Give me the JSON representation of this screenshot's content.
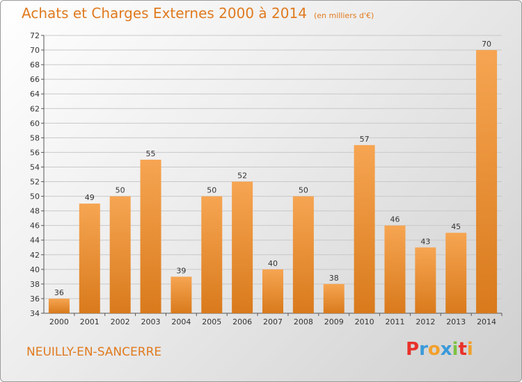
{
  "header": {
    "title": "Achats et Charges Externes 2000 à 2014",
    "unit": "(en milliers d'€)"
  },
  "footer": {
    "commune": "NEUILLY-EN-SANCERRE",
    "logo_letters": [
      "P",
      "r",
      "o",
      "x",
      "i",
      "t",
      "i"
    ],
    "logo_colors": [
      "#e8312a",
      "#3a9ad9",
      "#f2a02b",
      "#3a9ad9",
      "#7cc242",
      "#e8312a",
      "#f2a02b"
    ]
  },
  "colors": {
    "accent": "#e07a1f",
    "bar_top": "#f6a552",
    "bar_bottom": "#d97a1c"
  },
  "chart_data": {
    "type": "bar",
    "title": "Achats et Charges Externes 2000 à 2014",
    "subtitle": "(en milliers d'€)",
    "categories": [
      "2000",
      "2001",
      "2002",
      "2003",
      "2004",
      "2005",
      "2006",
      "2007",
      "2008",
      "2009",
      "2010",
      "2011",
      "2012",
      "2013",
      "2014"
    ],
    "values": [
      36,
      49,
      50,
      55,
      39,
      50,
      52,
      40,
      50,
      38,
      57,
      46,
      43,
      45,
      70
    ],
    "ylim": [
      34,
      72
    ],
    "yticks": [
      34,
      36,
      38,
      40,
      42,
      44,
      46,
      48,
      50,
      52,
      54,
      56,
      58,
      60,
      62,
      64,
      66,
      68,
      70,
      72
    ],
    "grid": true,
    "xlabel": "",
    "ylabel": ""
  }
}
